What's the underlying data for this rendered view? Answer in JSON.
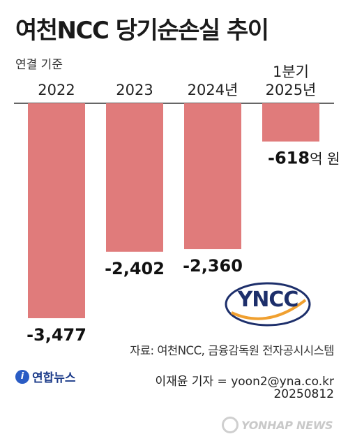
{
  "title": "여천NCC 당기순손실 추이",
  "subtitle": "연결 기준",
  "chart_data": {
    "type": "bar",
    "title": "여천NCC 당기순손실 추이",
    "subtitle": "연결 기준",
    "categories": [
      [
        "2022"
      ],
      [
        "2023"
      ],
      [
        "2024년"
      ],
      [
        "1분기",
        "2025년"
      ]
    ],
    "values": [
      -3477,
      -2402,
      -2360,
      -618
    ],
    "value_labels": [
      "-3,477",
      "-2,402",
      "-2,360",
      "-618"
    ],
    "unit": "억 원",
    "ylim": [
      -3477,
      0
    ],
    "bar_color": "#e07b7b",
    "grid": false,
    "legend": "none"
  },
  "logo": {
    "text": "YNCC",
    "color": "#1d2f6b",
    "accent": "#f0a030"
  },
  "source": "자료: 여천NCC, 금융감독원 전자공시시스템",
  "agency": {
    "icon": "yonhap-icon",
    "name": "연합뉴스"
  },
  "reporter": "이재윤 기자 = yoon2@yna.co.kr",
  "date": "20250812",
  "watermark": "YONHAP NEWS",
  "colors": {
    "bar": "#e07b7b",
    "axis": "#333333",
    "agency": "#1d3c8a"
  }
}
